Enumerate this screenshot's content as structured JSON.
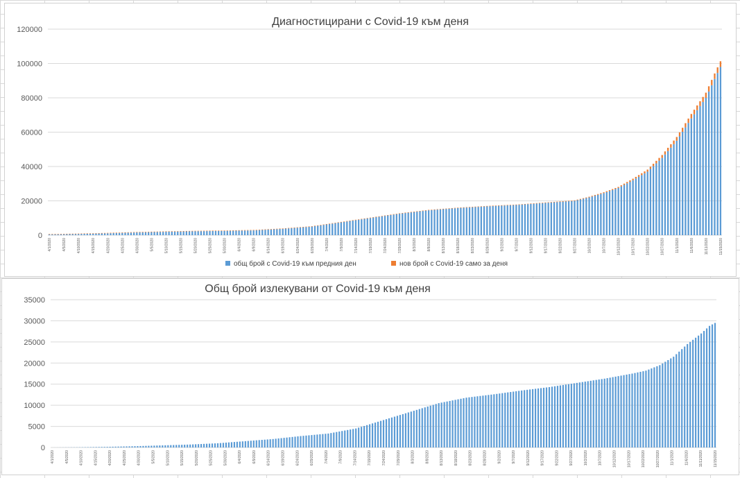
{
  "chart_data": [
    {
      "type": "bar",
      "title": "Диагностицирани с Covid-19 към деня",
      "xlabel": "",
      "ylabel": "",
      "ylim": [
        0,
        120000
      ],
      "yticks": [
        "0",
        "20000",
        "40000",
        "60000",
        "80000",
        "100000",
        "120000"
      ],
      "grid": true,
      "legend_position": "bottom",
      "x_start": "4/1/2020",
      "x_end": "11/15/2020",
      "x_tick_labels": [
        "4/1/2020",
        "4/5/2020",
        "4/10/2020",
        "4/15/2020",
        "4/20/2020",
        "4/25/2020",
        "4/30/2020",
        "5/5/2020",
        "5/10/2020",
        "5/15/2020",
        "5/20/2020",
        "5/25/2020",
        "5/30/2020",
        "6/4/2020",
        "6/9/2020",
        "6/14/2020",
        "6/19/2020",
        "6/24/2020",
        "6/29/2020",
        "7/4/2020",
        "7/9/2020",
        "7/14/2020",
        "7/19/2020",
        "7/24/2020",
        "7/29/2020",
        "8/3/2020",
        "8/8/2020",
        "8/13/2020",
        "8/18/2020",
        "8/23/2020",
        "8/28/2020",
        "9/2/2020",
        "9/7/2020",
        "9/12/2020",
        "9/17/2020",
        "9/22/2020",
        "9/27/2020",
        "10/2/2020",
        "10/7/2020",
        "10/12/2020",
        "10/17/2020",
        "10/22/2020",
        "10/27/2020",
        "11/1/2020",
        "11/6/2020",
        "11/11/2020",
        "11/15/2020"
      ],
      "series": [
        {
          "name": "общ брой с Covid-19 към предния ден",
          "color": "#5b9bd5",
          "knots": [
            [
              0,
              400
            ],
            [
              10,
              700
            ],
            [
              20,
              1100
            ],
            [
              30,
              1600
            ],
            [
              40,
              2000
            ],
            [
              50,
              2300
            ],
            [
              60,
              2500
            ],
            [
              70,
              2800
            ],
            [
              80,
              3700
            ],
            [
              90,
              5000
            ],
            [
              100,
              7500
            ],
            [
              110,
              10000
            ],
            [
              120,
              12500
            ],
            [
              130,
              14500
            ],
            [
              140,
              15800
            ],
            [
              150,
              16800
            ],
            [
              160,
              17600
            ],
            [
              170,
              18800
            ],
            [
              180,
              20000
            ],
            [
              185,
              22000
            ],
            [
              190,
              24500
            ],
            [
              195,
              27500
            ],
            [
              200,
              32000
            ],
            [
              205,
              37000
            ],
            [
              210,
              45000
            ],
            [
              215,
              55000
            ],
            [
              220,
              68000
            ],
            [
              225,
              80000
            ],
            [
              228,
              91000
            ],
            [
              230,
              98000
            ]
          ]
        },
        {
          "name": "нов брой с Covid-19 само за деня",
          "color": "#ed7d31",
          "knots": [
            [
              0,
              20
            ],
            [
              60,
              80
            ],
            [
              90,
              150
            ],
            [
              120,
              200
            ],
            [
              150,
              180
            ],
            [
              180,
              300
            ],
            [
              195,
              600
            ],
            [
              205,
              1200
            ],
            [
              215,
              2200
            ],
            [
              225,
              3000
            ],
            [
              230,
              3300
            ]
          ]
        }
      ]
    },
    {
      "type": "bar",
      "title": "Общ брой излекувани от Covid-19 към деня",
      "xlabel": "",
      "ylabel": "",
      "ylim": [
        0,
        35000
      ],
      "yticks": [
        "0",
        "5000",
        "10000",
        "15000",
        "20000",
        "25000",
        "30000",
        "35000"
      ],
      "grid": true,
      "x_start": "4/1/2020",
      "x_end": "11/15/2020",
      "x_tick_labels": [
        "4/1/2020",
        "4/5/2020",
        "4/10/2020",
        "4/15/2020",
        "4/20/2020",
        "4/25/2020",
        "4/30/2020",
        "5/5/2020",
        "5/10/2020",
        "5/15/2020",
        "5/20/2020",
        "5/25/2020",
        "5/30/2020",
        "6/4/2020",
        "6/9/2020",
        "6/14/2020",
        "6/19/2020",
        "6/24/2020",
        "6/29/2020",
        "7/4/2020",
        "7/9/2020",
        "7/14/2020",
        "7/19/2020",
        "7/24/2020",
        "7/29/2020",
        "8/3/2020",
        "8/8/2020",
        "8/13/2020",
        "8/18/2020",
        "8/23/2020",
        "8/28/2020",
        "9/2/2020",
        "9/7/2020",
        "9/12/2020",
        "9/17/2020",
        "9/22/2020",
        "9/27/2020",
        "10/2/2020",
        "10/7/2020",
        "10/12/2020",
        "10/17/2020",
        "10/22/2020",
        "10/27/2020",
        "11/1/2020",
        "11/6/2020",
        "11/11/2020",
        "11/15/2020"
      ],
      "series": [
        {
          "color": "#5b9bd5",
          "knots": [
            [
              0,
              0
            ],
            [
              10,
              50
            ],
            [
              20,
              150
            ],
            [
              30,
              300
            ],
            [
              40,
              500
            ],
            [
              50,
              700
            ],
            [
              60,
              1000
            ],
            [
              70,
              1500
            ],
            [
              80,
              2000
            ],
            [
              90,
              2700
            ],
            [
              100,
              3300
            ],
            [
              110,
              4500
            ],
            [
              120,
              6500
            ],
            [
              130,
              8500
            ],
            [
              140,
              10500
            ],
            [
              150,
              11800
            ],
            [
              160,
              12600
            ],
            [
              170,
              13500
            ],
            [
              180,
              14300
            ],
            [
              190,
              15300
            ],
            [
              200,
              16300
            ],
            [
              210,
              17500
            ],
            [
              215,
              18200
            ],
            [
              220,
              19500
            ],
            [
              225,
              21500
            ],
            [
              230,
              24500
            ],
            [
              235,
              27000
            ],
            [
              238,
              28800
            ],
            [
              240,
              29500
            ]
          ]
        }
      ]
    }
  ]
}
